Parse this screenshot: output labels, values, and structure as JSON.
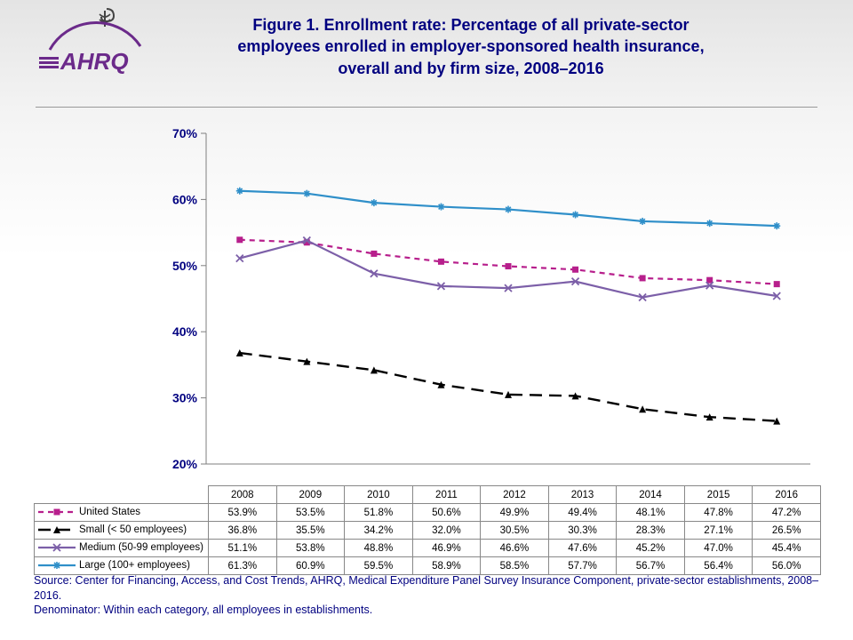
{
  "title_lines": [
    "Figure 1. Enrollment rate: Percentage of all private-sector",
    "employees enrolled in employer-sponsored health insurance,",
    "overall and by firm size, 2008–2016"
  ],
  "title_color": "#000080",
  "title_fontsize": 18,
  "chart": {
    "type": "line",
    "categories": [
      "2008",
      "2009",
      "2010",
      "2011",
      "2012",
      "2013",
      "2014",
      "2015",
      "2016"
    ],
    "ymin": 20,
    "ymax": 70,
    "ytick_step": 10,
    "y_suffix": "%",
    "background_color": "#ffffff",
    "axis_color": "#7f7f7f",
    "series": [
      {
        "name": "United States",
        "values": [
          53.9,
          53.5,
          51.8,
          50.6,
          49.9,
          49.4,
          48.1,
          47.8,
          47.2
        ],
        "color": "#b71f8c",
        "line_style": "dash",
        "dash": "6,5",
        "width": 2.2,
        "marker": "square",
        "marker_size": 7
      },
      {
        "name": "Small (< 50 employees)",
        "values": [
          36.8,
          35.5,
          34.2,
          32.0,
          30.5,
          30.3,
          28.3,
          27.1,
          26.5
        ],
        "color": "#000000",
        "line_style": "longdash",
        "dash": "14,8",
        "width": 2.4,
        "marker": "triangle",
        "marker_size": 8
      },
      {
        "name": "Medium (50-99 employees)",
        "values": [
          51.1,
          53.8,
          48.8,
          46.9,
          46.6,
          47.6,
          45.2,
          47.0,
          45.4
        ],
        "color": "#7c5fa8",
        "line_style": "solid",
        "dash": "",
        "width": 2.2,
        "marker": "x",
        "marker_size": 8
      },
      {
        "name": "Large (100+ employees)",
        "values": [
          61.3,
          60.9,
          59.5,
          58.9,
          58.5,
          57.7,
          56.7,
          56.4,
          56.0
        ],
        "color": "#2f8fc9",
        "line_style": "solid",
        "dash": "",
        "width": 2.2,
        "marker": "asterisk",
        "marker_size": 8
      }
    ]
  },
  "table_display_values": [
    [
      "53.9%",
      "53.5%",
      "51.8%",
      "50.6%",
      "49.9%",
      "49.4%",
      "48.1%",
      "47.8%",
      "47.2%"
    ],
    [
      "36.8%",
      "35.5%",
      "34.2%",
      "32.0%",
      "30.5%",
      "30.3%",
      "28.3%",
      "27.1%",
      "26.5%"
    ],
    [
      "51.1%",
      "53.8%",
      "48.8%",
      "46.9%",
      "46.6%",
      "47.6%",
      "45.2%",
      "47.0%",
      "45.4%"
    ],
    [
      "61.3%",
      "60.9%",
      "59.5%",
      "58.9%",
      "58.5%",
      "57.7%",
      "56.7%",
      "56.4%",
      "56.0%"
    ]
  ],
  "footnote_lines": [
    "Source: Center for Financing, Access, and Cost Trends, AHRQ, Medical Expenditure Panel Survey Insurance Component, private-sector establishments, 2008–2016.",
    "Denominator: Within each category, all employees in establishments."
  ],
  "logo": {
    "text": "AHRQ",
    "color": "#6b2a8a",
    "arc_color": "#6b2a8a"
  }
}
